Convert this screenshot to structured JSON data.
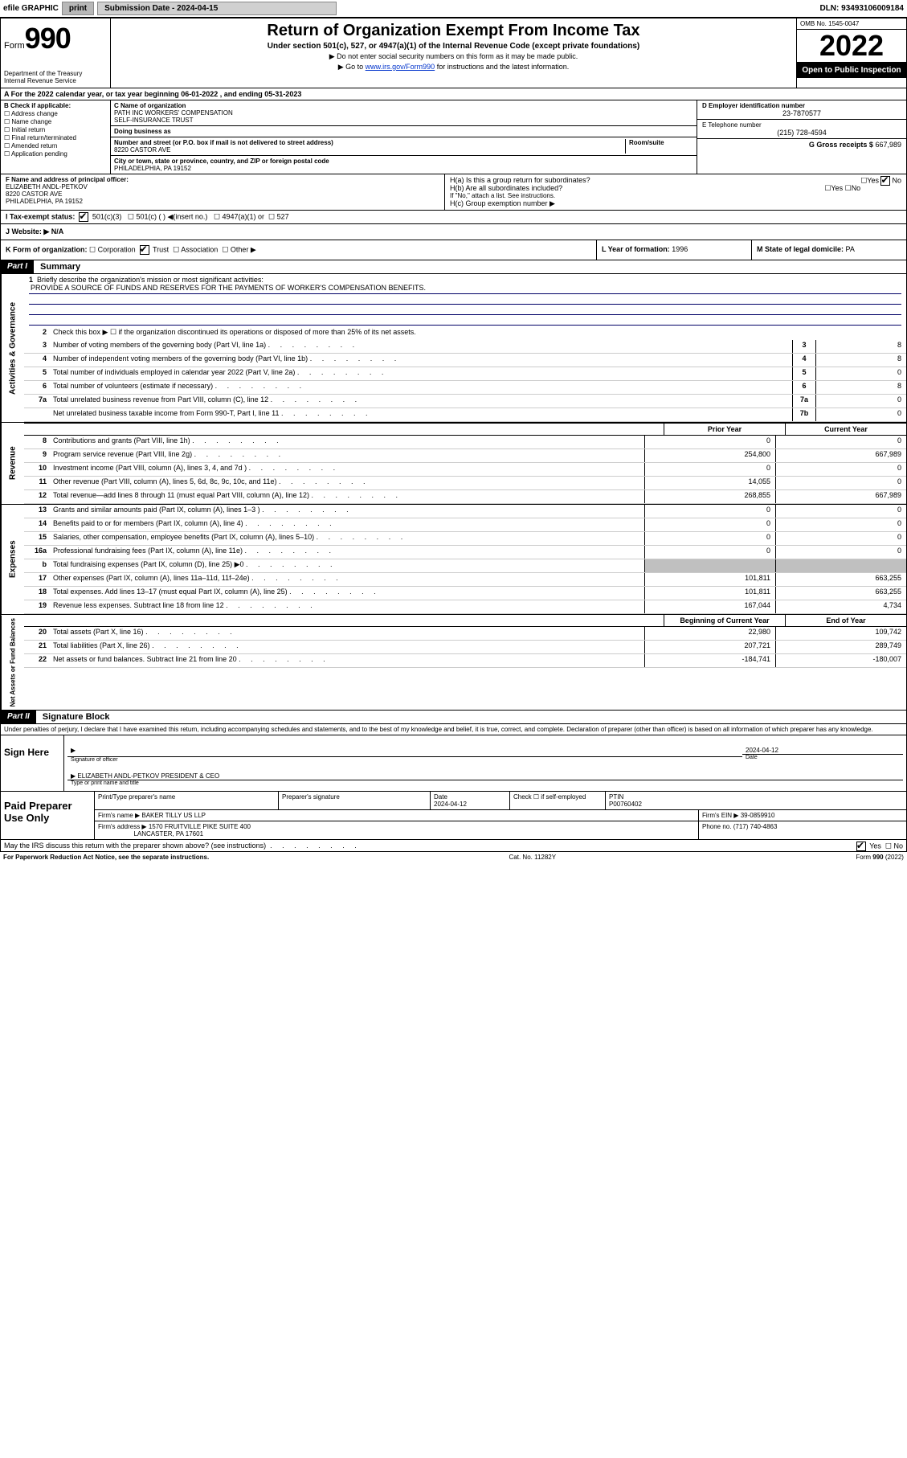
{
  "topbar": {
    "efile": "efile GRAPHIC",
    "print": "print",
    "sub_label": "Submission Date - 2024-04-15",
    "dln": "DLN: 93493106009184"
  },
  "header": {
    "form": "Form",
    "form_num": "990",
    "dept": "Department of the Treasury\nInternal Revenue Service",
    "title": "Return of Organization Exempt From Income Tax",
    "subtitle": "Under section 501(c), 527, or 4947(a)(1) of the Internal Revenue Code (except private foundations)",
    "note1": "Do not enter social security numbers on this form as it may be made public.",
    "note2_pre": "Go to ",
    "note2_link": "www.irs.gov/Form990",
    "note2_post": " for instructions and the latest information.",
    "omb": "OMB No. 1545-0047",
    "year": "2022",
    "inspection": "Open to Public Inspection"
  },
  "lineA": "For the 2022 calendar year, or tax year beginning 06-01-2022    , and ending 05-31-2023",
  "boxB": {
    "label": "B Check if applicable:",
    "items": [
      "Address change",
      "Name change",
      "Initial return",
      "Final return/terminated",
      "Amended return",
      "Application pending"
    ]
  },
  "boxC": {
    "name_label": "C Name of organization",
    "name": "PATH INC WORKERS' COMPENSATION\nSELF-INSURANCE TRUST",
    "dba_label": "Doing business as",
    "addr_label": "Number and street (or P.O. box if mail is not delivered to street address)",
    "room_label": "Room/suite",
    "addr": "8220 CASTOR AVE",
    "city_label": "City or town, state or province, country, and ZIP or foreign postal code",
    "city": "PHILADELPHIA, PA  19152"
  },
  "boxD": {
    "label": "D Employer identification number",
    "value": "23-7870577"
  },
  "boxE": {
    "label": "E Telephone number",
    "value": "(215) 728-4594"
  },
  "boxG": {
    "label": "G Gross receipts $",
    "value": "667,989"
  },
  "boxF": {
    "label": "F  Name and address of principal officer:",
    "line1": "ELIZABETH ANDL-PETKOV",
    "line2": "8220 CASTOR AVE",
    "line3": "PHILADELPHIA, PA  19152"
  },
  "boxH": {
    "ha": "H(a)  Is this a group return for subordinates?",
    "hb": "H(b)  Are all subordinates included?",
    "hb_note": "If \"No,\" attach a list. See instructions.",
    "hc": "H(c)  Group exemption number ▶",
    "yes": "Yes",
    "no": "No"
  },
  "lineI": {
    "label": "I    Tax-exempt status:",
    "opts": [
      "501(c)(3)",
      "501(c) (  ) ◀(insert no.)",
      "4947(a)(1) or",
      "527"
    ]
  },
  "lineJ": {
    "label": "J   Website: ▶",
    "value": "N/A"
  },
  "lineK": {
    "label": "K Form of organization:",
    "opts": [
      "Corporation",
      "Trust",
      "Association",
      "Other ▶"
    ]
  },
  "lineL": {
    "label": "L Year of formation:",
    "value": "1996"
  },
  "lineM": {
    "label": "M State of legal domicile:",
    "value": "PA"
  },
  "part1": {
    "tag": "Part I",
    "title": "Summary"
  },
  "summary": {
    "q1": "Briefly describe the organization's mission or most significant activities:",
    "mission": "PROVIDE A SOURCE OF FUNDS AND RESERVES FOR THE PAYMENTS OF WORKER'S COMPENSATION BENEFITS.",
    "q2": "Check this box ▶ ☐  if the organization discontinued its operations or disposed of more than 25% of its net assets.",
    "lines_gov": [
      {
        "n": "3",
        "d": "Number of voting members of the governing body (Part VI, line 1a)",
        "box": "3",
        "val": "8"
      },
      {
        "n": "4",
        "d": "Number of independent voting members of the governing body (Part VI, line 1b)",
        "box": "4",
        "val": "8"
      },
      {
        "n": "5",
        "d": "Total number of individuals employed in calendar year 2022 (Part V, line 2a)",
        "box": "5",
        "val": "0"
      },
      {
        "n": "6",
        "d": "Total number of volunteers (estimate if necessary)",
        "box": "6",
        "val": "8"
      },
      {
        "n": "7a",
        "d": "Total unrelated business revenue from Part VIII, column (C), line 12",
        "box": "7a",
        "val": "0"
      },
      {
        "n": "",
        "d": "Net unrelated business taxable income from Form 990-T, Part I, line 11",
        "box": "7b",
        "val": "0"
      }
    ],
    "head_prior": "Prior Year",
    "head_curr": "Current Year",
    "lines_rev": [
      {
        "n": "8",
        "d": "Contributions and grants (Part VIII, line 1h)",
        "py": "0",
        "cy": "0"
      },
      {
        "n": "9",
        "d": "Program service revenue (Part VIII, line 2g)",
        "py": "254,800",
        "cy": "667,989"
      },
      {
        "n": "10",
        "d": "Investment income (Part VIII, column (A), lines 3, 4, and 7d )",
        "py": "0",
        "cy": "0"
      },
      {
        "n": "11",
        "d": "Other revenue (Part VIII, column (A), lines 5, 6d, 8c, 9c, 10c, and 11e)",
        "py": "14,055",
        "cy": "0"
      },
      {
        "n": "12",
        "d": "Total revenue—add lines 8 through 11 (must equal Part VIII, column (A), line 12)",
        "py": "268,855",
        "cy": "667,989"
      }
    ],
    "lines_exp": [
      {
        "n": "13",
        "d": "Grants and similar amounts paid (Part IX, column (A), lines 1–3 )",
        "py": "0",
        "cy": "0"
      },
      {
        "n": "14",
        "d": "Benefits paid to or for members (Part IX, column (A), line 4)",
        "py": "0",
        "cy": "0"
      },
      {
        "n": "15",
        "d": "Salaries, other compensation, employee benefits (Part IX, column (A), lines 5–10)",
        "py": "0",
        "cy": "0"
      },
      {
        "n": "16a",
        "d": "Professional fundraising fees (Part IX, column (A), line 11e)",
        "py": "0",
        "cy": "0"
      },
      {
        "n": "b",
        "d": "Total fundraising expenses (Part IX, column (D), line 25) ▶0",
        "py": "",
        "cy": "",
        "gray": true
      },
      {
        "n": "17",
        "d": "Other expenses (Part IX, column (A), lines 11a–11d, 11f–24e)",
        "py": "101,811",
        "cy": "663,255"
      },
      {
        "n": "18",
        "d": "Total expenses. Add lines 13–17 (must equal Part IX, column (A), line 25)",
        "py": "101,811",
        "cy": "663,255"
      },
      {
        "n": "19",
        "d": "Revenue less expenses. Subtract line 18 from line 12",
        "py": "167,044",
        "cy": "4,734"
      }
    ],
    "head_beg": "Beginning of Current Year",
    "head_end": "End of Year",
    "lines_net": [
      {
        "n": "20",
        "d": "Total assets (Part X, line 16)",
        "py": "22,980",
        "cy": "109,742"
      },
      {
        "n": "21",
        "d": "Total liabilities (Part X, line 26)",
        "py": "207,721",
        "cy": "289,749"
      },
      {
        "n": "22",
        "d": "Net assets or fund balances. Subtract line 21 from line 20",
        "py": "-184,741",
        "cy": "-180,007"
      }
    ],
    "vtabs": {
      "gov": "Activities & Governance",
      "rev": "Revenue",
      "exp": "Expenses",
      "net": "Net Assets or Fund Balances"
    }
  },
  "part2": {
    "tag": "Part II",
    "title": "Signature Block"
  },
  "sig": {
    "penalty": "Under penalties of perjury, I declare that I have examined this return, including accompanying schedules and statements, and to the best of my knowledge and belief, it is true, correct, and complete. Declaration of preparer (other than officer) is based on all information of which preparer has any knowledge.",
    "sign_here": "Sign Here",
    "sig_officer": "Signature of officer",
    "date_label": "Date",
    "date_val": "2024-04-12",
    "name": "ELIZABETH ANDL-PETKOV  PRESIDENT & CEO",
    "name_label": "Type or print name and title",
    "paid": "Paid Preparer Use Only",
    "prep_name_label": "Print/Type preparer's name",
    "prep_sig_label": "Preparer's signature",
    "prep_date_label": "Date",
    "prep_date": "2024-04-12",
    "check_label": "Check ☐ if self-employed",
    "ptin_label": "PTIN",
    "ptin": "P00760402",
    "firm_name_label": "Firm's name    ▶",
    "firm_name": "BAKER TILLY US LLP",
    "firm_ein_label": "Firm's EIN ▶",
    "firm_ein": "39-0859910",
    "firm_addr_label": "Firm's address ▶",
    "firm_addr1": "1570 FRUITVILLE PIKE SUITE 400",
    "firm_addr2": "LANCASTER, PA  17601",
    "phone_label": "Phone no.",
    "phone": "(717) 740-4863",
    "discuss": "May the IRS discuss this return with the preparer shown above? (see instructions)",
    "paperwork": "For Paperwork Reduction Act Notice, see the separate instructions.",
    "catno": "Cat. No. 11282Y",
    "formno": "Form 990 (2022)"
  }
}
